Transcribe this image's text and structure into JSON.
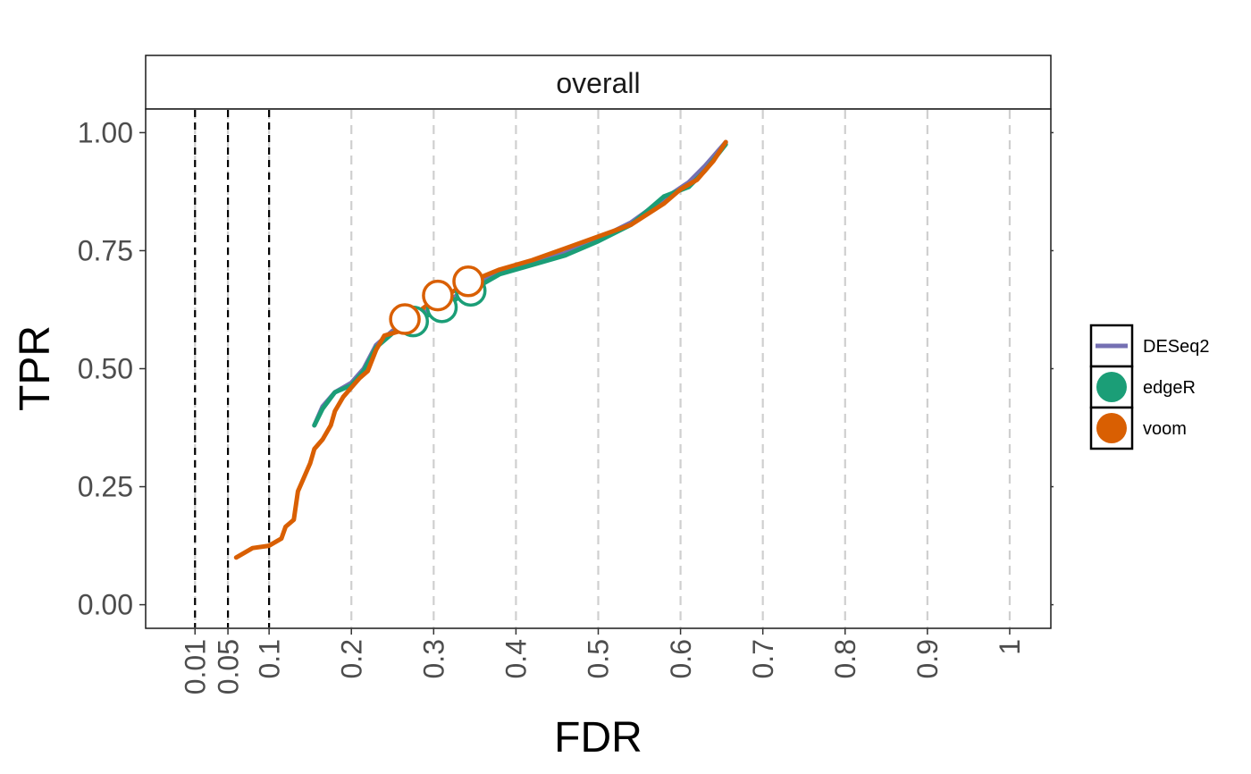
{
  "chart_data": {
    "type": "line",
    "facet": "overall",
    "xlabel": "FDR",
    "ylabel": "TPR",
    "xlim": [
      -0.05,
      1.05
    ],
    "ylim": [
      -0.05,
      1.05
    ],
    "x_ticks": [
      {
        "value": 0.01,
        "label": "0.01"
      },
      {
        "value": 0.05,
        "label": "0.05"
      },
      {
        "value": 0.1,
        "label": "0.1"
      },
      {
        "value": 0.2,
        "label": "0.2"
      },
      {
        "value": 0.3,
        "label": "0.3"
      },
      {
        "value": 0.4,
        "label": "0.4"
      },
      {
        "value": 0.5,
        "label": "0.5"
      },
      {
        "value": 0.6,
        "label": "0.6"
      },
      {
        "value": 0.7,
        "label": "0.7"
      },
      {
        "value": 0.8,
        "label": "0.8"
      },
      {
        "value": 0.9,
        "label": "0.9"
      },
      {
        "value": 1,
        "label": "1"
      }
    ],
    "y_ticks": [
      {
        "value": 0,
        "label": "0.00"
      },
      {
        "value": 0.25,
        "label": "0.25"
      },
      {
        "value": 0.5,
        "label": "0.50"
      },
      {
        "value": 0.75,
        "label": "0.75"
      },
      {
        "value": 1,
        "label": "1.00"
      }
    ],
    "grid": {
      "vertical_dashed": true,
      "horizontal": false
    },
    "threshold_lines": [
      0.01,
      0.05,
      0.1
    ],
    "legend": {
      "placement": "right"
    },
    "series": [
      {
        "name": "DESeq2",
        "color": "#7570B3",
        "x": [
          0.155,
          0.165,
          0.18,
          0.2,
          0.215,
          0.23,
          0.25,
          0.27,
          0.3,
          0.34,
          0.38,
          0.42,
          0.46,
          0.5,
          0.54,
          0.58,
          0.61,
          0.63,
          0.655
        ],
        "y": [
          0.38,
          0.42,
          0.45,
          0.47,
          0.5,
          0.55,
          0.58,
          0.6,
          0.63,
          0.665,
          0.705,
          0.725,
          0.745,
          0.775,
          0.81,
          0.86,
          0.895,
          0.93,
          0.98
        ],
        "markers": []
      },
      {
        "name": "edgeR",
        "color": "#1B9E77",
        "x": [
          0.155,
          0.165,
          0.18,
          0.2,
          0.215,
          0.23,
          0.25,
          0.275,
          0.305,
          0.34,
          0.38,
          0.42,
          0.46,
          0.5,
          0.54,
          0.58,
          0.61,
          0.63,
          0.655
        ],
        "y": [
          0.38,
          0.415,
          0.45,
          0.465,
          0.495,
          0.545,
          0.575,
          0.595,
          0.625,
          0.66,
          0.7,
          0.72,
          0.74,
          0.77,
          0.805,
          0.865,
          0.885,
          0.92,
          0.975
        ],
        "markers": [
          {
            "x": 0.275,
            "y": 0.6
          },
          {
            "x": 0.31,
            "y": 0.63
          },
          {
            "x": 0.345,
            "y": 0.665
          }
        ]
      },
      {
        "name": "voom",
        "color": "#D95F02",
        "x": [
          0.06,
          0.08,
          0.1,
          0.115,
          0.12,
          0.13,
          0.135,
          0.14,
          0.15,
          0.155,
          0.165,
          0.175,
          0.18,
          0.19,
          0.2,
          0.21,
          0.22,
          0.23,
          0.24,
          0.26,
          0.27,
          0.3,
          0.32,
          0.345,
          0.38,
          0.42,
          0.46,
          0.5,
          0.54,
          0.58,
          0.6,
          0.62,
          0.64,
          0.655
        ],
        "y": [
          0.1,
          0.12,
          0.125,
          0.14,
          0.165,
          0.18,
          0.24,
          0.26,
          0.3,
          0.33,
          0.35,
          0.38,
          0.41,
          0.44,
          0.46,
          0.48,
          0.495,
          0.54,
          0.57,
          0.58,
          0.605,
          0.645,
          0.66,
          0.685,
          0.71,
          0.73,
          0.755,
          0.78,
          0.805,
          0.85,
          0.88,
          0.9,
          0.94,
          0.98
        ],
        "markers": [
          {
            "x": 0.265,
            "y": 0.605
          },
          {
            "x": 0.305,
            "y": 0.655
          },
          {
            "x": 0.342,
            "y": 0.685
          }
        ]
      }
    ]
  }
}
